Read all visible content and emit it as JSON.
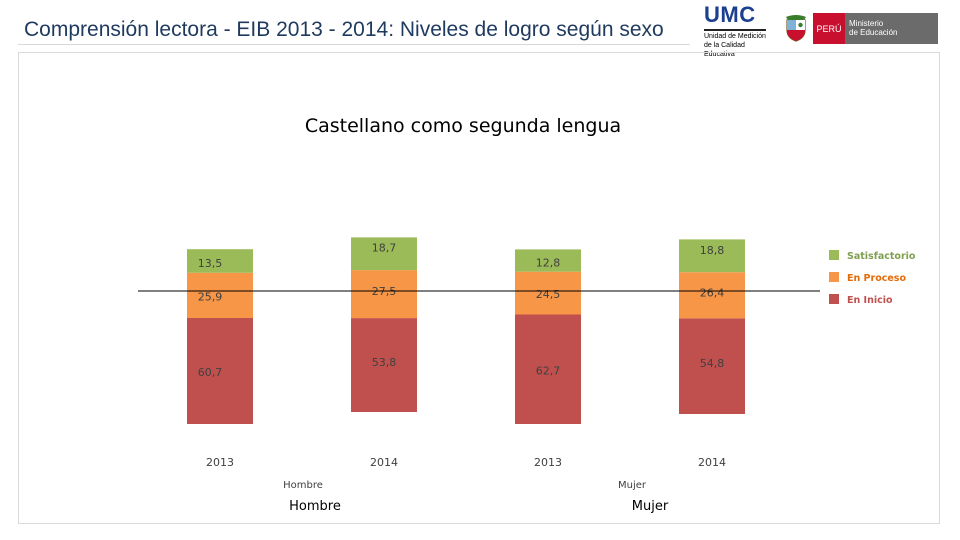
{
  "header": {
    "title": "Comprensión lectora - EIB 2013 - 2014: Niveles de logro según sexo",
    "umc_logo": {
      "mark": "UMC",
      "subtitle_line1": "Unidad de Medición",
      "subtitle_line2": "de la Calidad Educativa"
    },
    "minedu_logo": {
      "country": "PERÚ",
      "line1": "Ministerio",
      "line2": "de Educación"
    }
  },
  "colors": {
    "title": "#1f3a5f",
    "umc": "#1c3f8f",
    "satisfactorio": "#9bbb59",
    "en_proceso": "#f79646",
    "en_inicio": "#c0504d",
    "legend_satisfactorio_text": "#7f9f4f",
    "legend_en_proceso_text": "#e36c09",
    "legend_en_inicio_text": "#c0504d",
    "label_text": "#404040"
  },
  "chart_data": {
    "type": "bar",
    "stacked": true,
    "title": "Castellano como segunda lengua",
    "categories": [
      "2013",
      "2014",
      "2013",
      "2014"
    ],
    "groups": [
      {
        "label": "Hombre",
        "categories": [
          "2013",
          "2014"
        ]
      },
      {
        "label": "Mujer",
        "categories": [
          "2013",
          "2014"
        ]
      }
    ],
    "series": [
      {
        "name": "En Inicio",
        "values": [
          60.7,
          53.8,
          62.7,
          54.8
        ],
        "labels": [
          "60,7",
          "53,8",
          "62,7",
          "54,8"
        ]
      },
      {
        "name": "En Proceso",
        "values": [
          25.9,
          27.5,
          24.5,
          26.4
        ],
        "labels": [
          "25,9",
          "27,5",
          "24,5",
          "26,4"
        ]
      },
      {
        "name": "Satisfactorio",
        "values": [
          13.5,
          18.7,
          12.8,
          18.8
        ],
        "labels": [
          "13,5",
          "18,7",
          "12,8",
          "18,8"
        ]
      }
    ],
    "axis_group_labels": [
      "Hombre",
      "Mujer"
    ],
    "outer_group_labels": [
      "Hombre",
      "Mujer"
    ],
    "legend": [
      "Satisfactorio",
      "En Proceso",
      "En Inicio"
    ],
    "legend_position": "right",
    "grid": false
  }
}
